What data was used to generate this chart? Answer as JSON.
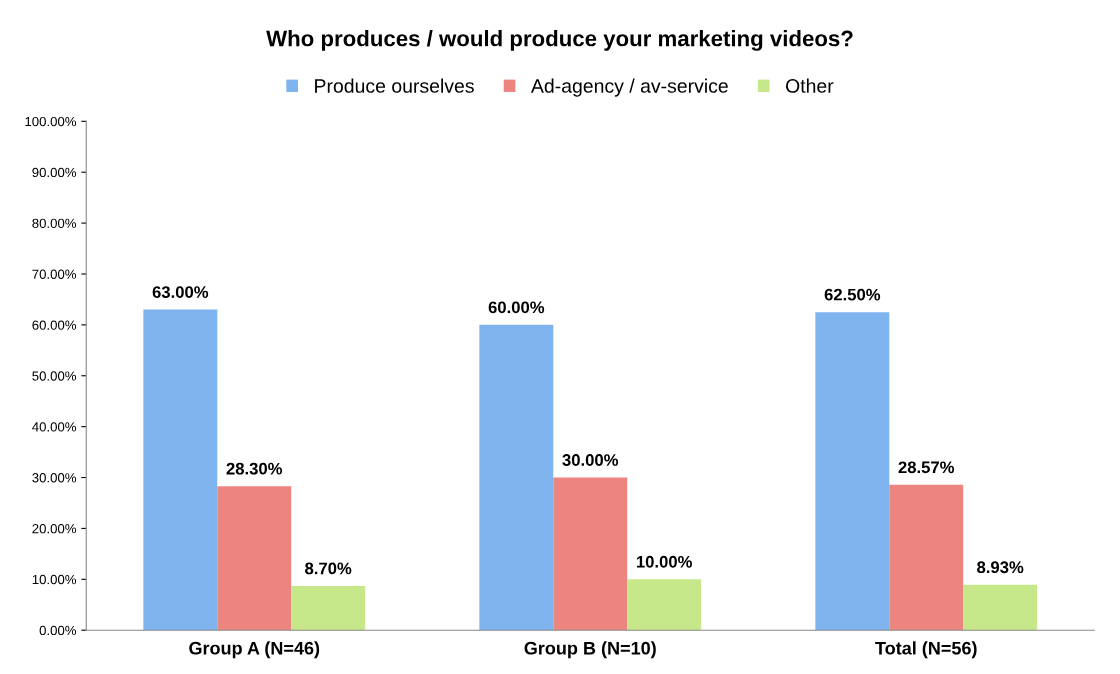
{
  "chart_data": {
    "type": "bar",
    "title": "Who produces / would produce your marketing videos?",
    "categories": [
      "Group A (N=46)",
      "Group B (N=10)",
      "Total (N=56)"
    ],
    "series": [
      {
        "name": "Produce ourselves",
        "color": "#7fb3ee",
        "values": [
          63.0,
          60.0,
          62.5
        ],
        "value_labels": [
          "63.00%",
          "60.00%",
          "62.50%"
        ]
      },
      {
        "name": "Ad-agency / av-service",
        "color": "#ec8580",
        "values": [
          28.3,
          30.0,
          28.57
        ],
        "value_labels": [
          "28.30%",
          "30.00%",
          "28.57%"
        ]
      },
      {
        "name": "Other",
        "color": "#c6e88a",
        "values": [
          8.7,
          10.0,
          8.93
        ],
        "value_labels": [
          "8.70%",
          "10.00%",
          "8.93%"
        ]
      }
    ],
    "ylim": [
      0,
      100
    ],
    "yticks": [
      {
        "value": 0,
        "label": "0.00%"
      },
      {
        "value": 10,
        "label": "10.00%"
      },
      {
        "value": 20,
        "label": "20.00%"
      },
      {
        "value": 30,
        "label": "30.00%"
      },
      {
        "value": 40,
        "label": "40.00%"
      },
      {
        "value": 50,
        "label": "50.00%"
      },
      {
        "value": 60,
        "label": "60.00%"
      },
      {
        "value": 70,
        "label": "70.00%"
      },
      {
        "value": 80,
        "label": "80.00%"
      },
      {
        "value": 90,
        "label": "90.00%"
      },
      {
        "value": 100,
        "label": "100.00%"
      }
    ],
    "grid": false,
    "legend": "top"
  }
}
